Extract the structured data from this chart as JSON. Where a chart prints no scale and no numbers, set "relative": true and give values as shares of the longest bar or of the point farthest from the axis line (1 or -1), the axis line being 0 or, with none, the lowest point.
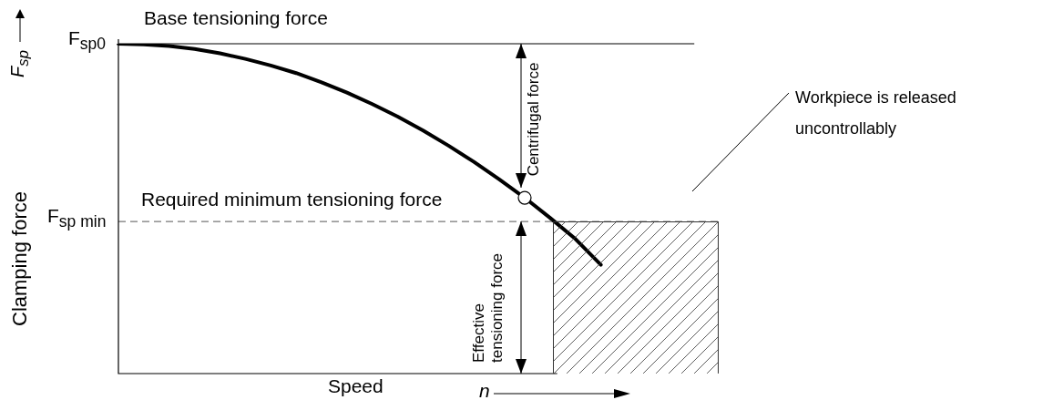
{
  "chart_data": {
    "type": "line",
    "relative": true,
    "xlabel": "Speed",
    "ylabel": "Clamping force",
    "categories": [
      null,
      null,
      null,
      null,
      null,
      null,
      null,
      null,
      null,
      null,
      null,
      null,
      null,
      null,
      null,
      null,
      null,
      null,
      null,
      null,
      null,
      null,
      null,
      null,
      null
    ],
    "series": [
      {
        "color": "#000000",
        "values": [
          1.0,
          0.998,
          0.993,
          0.984,
          0.971,
          0.954,
          0.934,
          0.911,
          0.883,
          0.852,
          0.817,
          0.779,
          0.737,
          0.691,
          0.642,
          0.589,
          0.533,
          0.472,
          0.408,
          0.33,
          null,
          null,
          null,
          null,
          null
        ]
      }
    ],
    "ref_lines": [
      {
        "axis": "y",
        "value": 1,
        "label": "F$_{sp0}$",
        "color": "#000000",
        "line_style": "solid"
      },
      {
        "axis": "y",
        "value": 0.461,
        "label": "F$_{sp min}$",
        "color": "#555555",
        "line_style": "dashed"
      }
    ],
    "annotations": [
      "Base tensioning force",
      "Required minimum tensioning force",
      "Centrifugal force",
      "Effective tensioning force",
      "Workpiece is released uncontrollably",
      "F$_{sp}$",
      "n"
    ],
    "grid": false,
    "legend": false
  }
}
